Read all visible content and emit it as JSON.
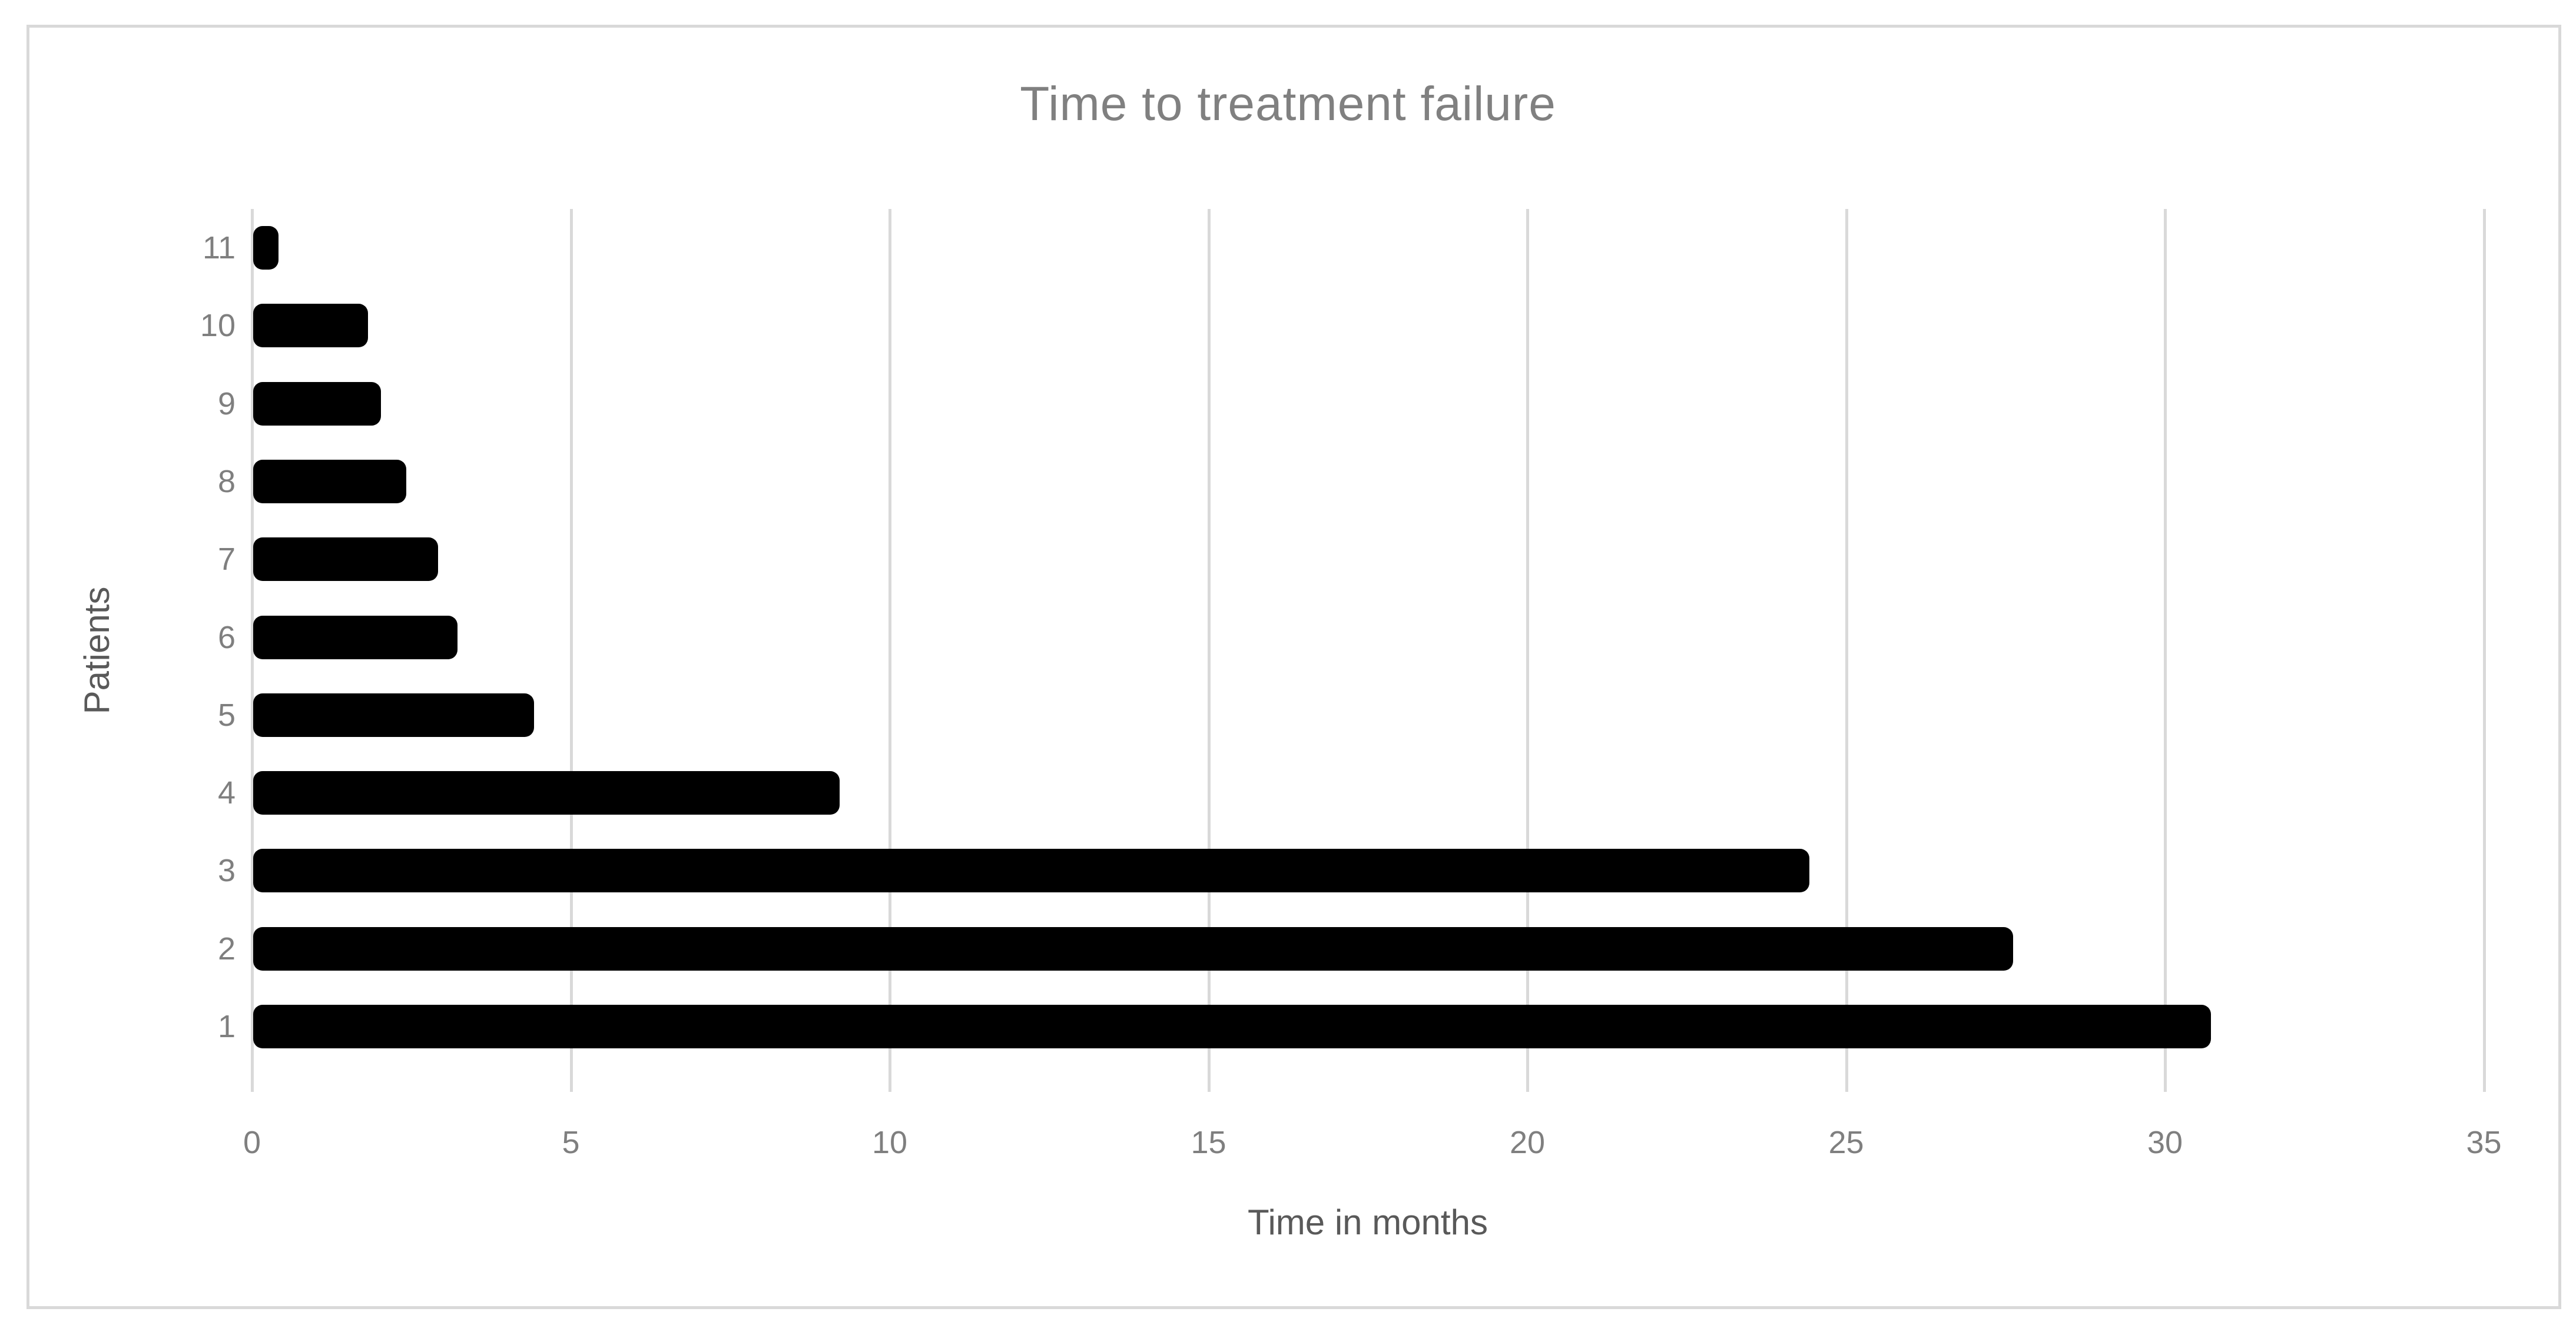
{
  "chart_data": {
    "type": "bar",
    "orientation": "horizontal",
    "title": "Time to treatment failure",
    "xlabel": "Time in months",
    "ylabel": "Patients",
    "categories": [
      "11",
      "10",
      "9",
      "8",
      "7",
      "6",
      "5",
      "4",
      "3",
      "2",
      "1"
    ],
    "values": [
      0.4,
      1.8,
      2.0,
      2.4,
      2.9,
      3.2,
      4.4,
      9.2,
      24.4,
      27.6,
      30.7
    ],
    "x_ticks": [
      0,
      5,
      10,
      15,
      20,
      25,
      30,
      35
    ],
    "xlim": [
      0,
      35
    ],
    "grid": "vertical-gridlines-on",
    "legend_position": "none",
    "colors": {
      "bar": "#000000",
      "gridline": "#d9d9d9",
      "chart_border": "#d9d9d9",
      "tick_label": "#7f7f7f",
      "axis_title": "#595959",
      "chart_title": "#808080",
      "background": "#ffffff"
    }
  }
}
